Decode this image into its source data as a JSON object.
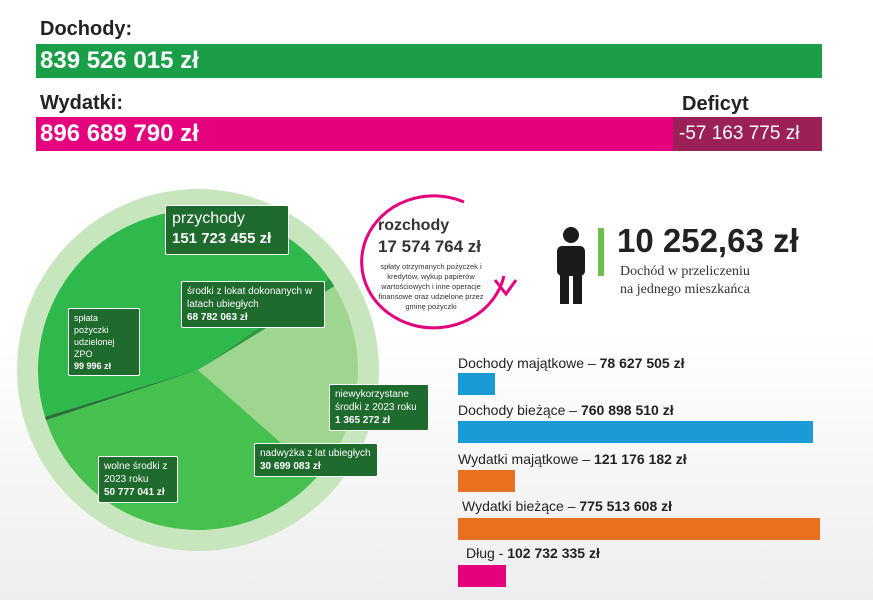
{
  "header": {
    "income_label": "Dochody:",
    "income_value": "839 526 015 zł",
    "expenses_label": "Wydatki:",
    "expenses_value": "896 689 790 zł",
    "deficit_label": "Deficyt",
    "deficit_value": "-57 163 775 zł",
    "colors": {
      "income": "#1a9e48",
      "expenses": "#e5007e",
      "deficit": "#9c2058"
    }
  },
  "rozchody": {
    "title": "rozchody",
    "value": "17 574 764 zł",
    "description": "spłaty otrzymanych pożyczek i kredytów, wykup papierów wartościowych i inne operacje finansowe oraz udzielone przez gminę pożyczki"
  },
  "per_capita": {
    "value": "10 252,63 zł",
    "line1": "Dochód w przeliczeniu",
    "line2": "na jednego mieszkańca",
    "icon": "person-icon"
  },
  "chart_data": [
    {
      "type": "pie",
      "title": "przychody",
      "total": "151 723 455 zł",
      "slices": [
        {
          "label": "środki z lokat dokonanych w latach ubiegłych",
          "value": 68782063,
          "display": "68 782 063 zł"
        },
        {
          "label": "niewykorzystane środki z 2023 roku",
          "value": 1365272,
          "display": "1 365 272 zł"
        },
        {
          "label": "nadwyżka z lat ubiegłych",
          "value": 30699083,
          "display": "30 699 083 zł"
        },
        {
          "label": "wolne środki z 2023 roku",
          "value": 50777041,
          "display": "50 777 041 zł"
        },
        {
          "label": "spłata pożyczki udzielonej ZPO",
          "value": 99996,
          "display": "99 996 zł"
        }
      ],
      "colors": [
        "#2fb84b",
        "#2a9a3e",
        "#9fd68f",
        "#46c04f",
        "#2a6f39"
      ]
    },
    {
      "type": "bar",
      "orientation": "horizontal",
      "categories": [
        "Dochody majątkowe",
        "Dochody bieżące",
        "Wydatki majątkowe",
        "Wydatki bieżące",
        "Dług"
      ],
      "separators": [
        " – ",
        " – ",
        " – ",
        " – ",
        " - "
      ],
      "values": [
        78627505,
        760898510,
        121176182,
        775513608,
        102732335
      ],
      "display": [
        "78 627 505 zł",
        "760 898 510 zł",
        "121 176 182 zł",
        "775 513 608 zł",
        "102 732 335 zł"
      ],
      "colors": [
        "#1a9ad6",
        "#1a9ad6",
        "#e8701e",
        "#e8701e",
        "#e5007e"
      ]
    }
  ]
}
